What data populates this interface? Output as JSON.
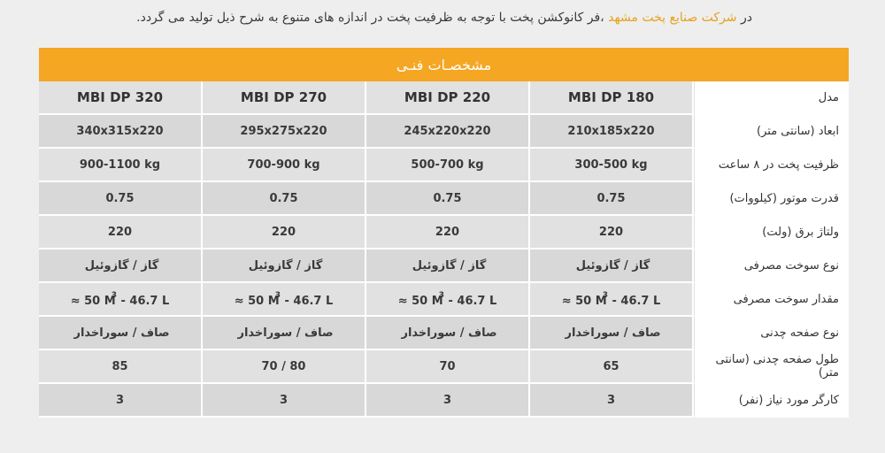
{
  "intro": {
    "prefix": "در ",
    "highlight": "شرکت صنایع پخت مشهد",
    "suffix": " ،فر کانوکشن پخت با توجه به ظرفیت پخت در اندازه های متنوع به شرح ذیل تولید می گردد."
  },
  "table": {
    "title": "مشخصـات فنـی",
    "model_label": "مدل",
    "models": [
      "MBI DP 180",
      "MBI DP 220",
      "MBI DP 270",
      "MBI DP 320"
    ],
    "rows": [
      {
        "label": "ابعاد (سانتی متر)",
        "values": [
          "210x185x220",
          "245x220x220",
          "295x275x220",
          "340x315x220"
        ]
      },
      {
        "label": "ظرفیت پخت در ۸ ساعت",
        "values": [
          "300-500 kg",
          "500-700 kg",
          "700-900 kg",
          "900-1100 kg"
        ]
      },
      {
        "label": "قدرت موتور (کیلووات)",
        "values": [
          "0.75",
          "0.75",
          "0.75",
          "0.75"
        ]
      },
      {
        "label": "ولتاژ برق (ولت)",
        "values": [
          "220",
          "220",
          "220",
          "220"
        ]
      },
      {
        "label": "نوع سوخت مصرفی",
        "values": [
          "گاز / گازوئیل",
          "گاز / گازوئیل",
          "گاز / گازوئیل",
          "گاز / گازوئیل"
        ]
      },
      {
        "label": "مقدار سوخت مصرفی",
        "fuel": {
          "pre": "≈ 50 M",
          "sup": "3",
          "post": " - 46.7 L"
        }
      },
      {
        "label": "نوع صفحه چدنی",
        "values": [
          "صاف / سوراخدار",
          "صاف / سوراخدار",
          "صاف / سوراخدار",
          "صاف / سوراخدار"
        ]
      },
      {
        "label": "طول صفحه چدنی (سانتی متر)",
        "values": [
          "65",
          "70",
          "70 / 80",
          "85"
        ]
      },
      {
        "label": "کارگر مورد نیاز (نفر)",
        "values": [
          "3",
          "3",
          "3",
          "3"
        ]
      }
    ]
  }
}
